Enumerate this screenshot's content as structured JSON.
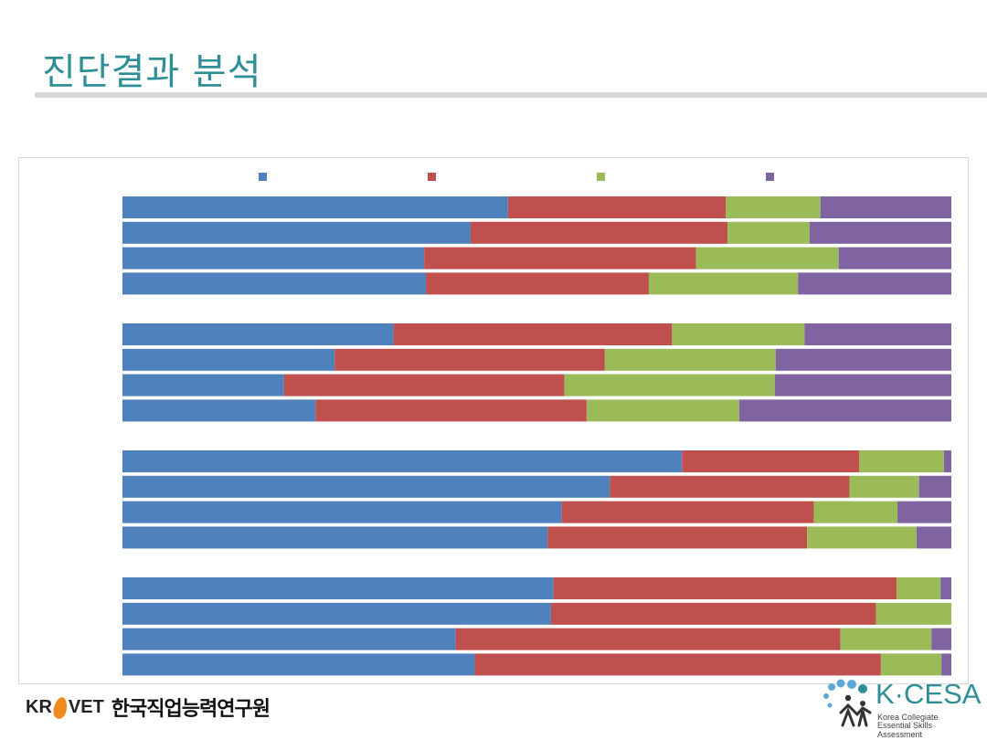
{
  "slide": {
    "title": "진단결과 분석"
  },
  "footer": {
    "left_logo_latin": "KR",
    "left_logo_latin2": "VET",
    "left_logo_korean": "한국직업능력연구원",
    "right_logo_name": "K·CESA",
    "right_logo_sub1": "Korea Collegiate",
    "right_logo_sub2": "Essential Skills Assessment"
  },
  "chart_data": {
    "type": "bar",
    "orientation": "horizontal",
    "stacked": "100%",
    "legend_position": "top",
    "title": "",
    "xlabel": "",
    "ylabel": "",
    "xlim": [
      0,
      100
    ],
    "grid": false,
    "groups": 4,
    "bars_per_group": 4,
    "series": [
      {
        "name": "",
        "color": "#4f81bd",
        "values": [
          46.5,
          42,
          36.4,
          36.6,
          32.7,
          25.6,
          19.5,
          23.3,
          67.5,
          58.8,
          53,
          51.3,
          52,
          51.7,
          40.2,
          42.5
        ]
      },
      {
        "name": "",
        "color": "#c0504d",
        "values": [
          26.3,
          31,
          32.8,
          26.9,
          33.6,
          32.6,
          33.8,
          32.7,
          21.4,
          28.9,
          30.4,
          31.3,
          41.4,
          39.2,
          46.4,
          49
        ]
      },
      {
        "name": "",
        "color": "#9bbb59",
        "values": [
          11.4,
          9.9,
          17.2,
          18,
          16,
          20.6,
          25.4,
          18.4,
          10.2,
          8.4,
          10.1,
          13.2,
          5.3,
          9.1,
          11,
          7.3
        ]
      },
      {
        "name": "",
        "color": "#8064a2",
        "values": [
          15.8,
          17.1,
          13.6,
          18.5,
          17.7,
          21.2,
          21.3,
          25.6,
          0.9,
          3.9,
          6.5,
          4.2,
          1.3,
          0,
          2.4,
          1.2
        ]
      }
    ]
  }
}
